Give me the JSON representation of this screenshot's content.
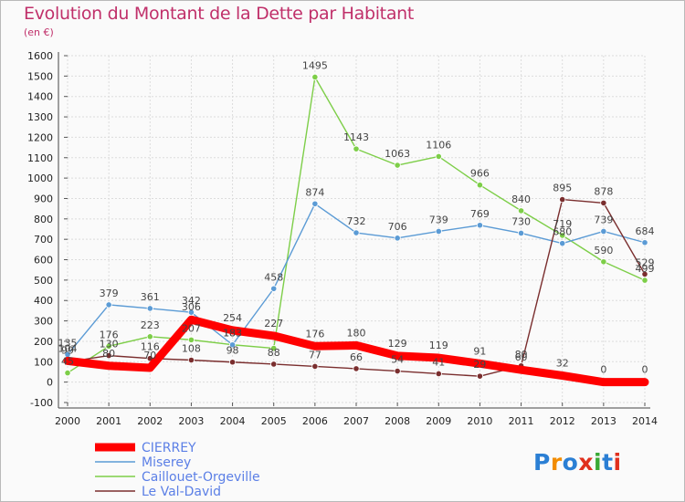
{
  "header": {
    "title": "Evolution du Montant de la Dette par Habitant",
    "unit": "(en €)"
  },
  "logo": {
    "text": "Proxiti",
    "colors": [
      "#2b7fd4",
      "#f28c00",
      "#2b7fd4",
      "#e0301e",
      "#3aa935",
      "#2b7fd4",
      "#e0301e"
    ]
  },
  "colors": {
    "title": "#c0306a",
    "grid": "#dcdcdc"
  },
  "chart_data": {
    "type": "line",
    "title": "Evolution du Montant de la Dette par Habitant",
    "subtitle": "(en €)",
    "xlabel": "",
    "ylabel": "",
    "x": [
      "2000",
      "2001",
      "2002",
      "2003",
      "2004",
      "2005",
      "2006",
      "2007",
      "2008",
      "2009",
      "2010",
      "2011",
      "2012",
      "2013",
      "2014"
    ],
    "ylim": [
      -100,
      1600
    ],
    "yticks": [
      -100,
      0,
      100,
      200,
      300,
      400,
      500,
      600,
      700,
      800,
      900,
      1000,
      1100,
      1200,
      1300,
      1400,
      1500,
      1600
    ],
    "grid": true,
    "legend_position": "bottom-left",
    "series": [
      {
        "name": "CIERREY",
        "color": "#ff0000",
        "values": [
          104,
          80,
          70,
          306,
          254,
          227,
          176,
          180,
          129,
          119,
          91,
          60,
          32,
          0,
          0
        ],
        "labels": [
          "104",
          "80",
          "70",
          "306",
          "254",
          "227",
          "176",
          "180",
          "129",
          "119",
          "91",
          "60",
          "32",
          "0",
          "0"
        ]
      },
      {
        "name": "Miserey",
        "color": "#5b9bd5",
        "values": [
          135,
          379,
          361,
          342,
          183,
          458,
          874,
          732,
          706,
          739,
          769,
          730,
          680,
          739,
          684
        ],
        "labels": [
          "135",
          "379",
          "361",
          "342",
          "183",
          "458",
          "874",
          "732",
          "706",
          "739",
          "769",
          "730",
          "680",
          "739",
          "684"
        ]
      },
      {
        "name": "Caillouet-Orgeville",
        "color": "#7dce48",
        "values": [
          45,
          176,
          223,
          207,
          183,
          166,
          1495,
          1143,
          1063,
          1106,
          966,
          840,
          719,
          590,
          499
        ],
        "labels": [
          "45",
          "176",
          "223",
          "207",
          "183",
          "",
          "1495",
          "1143",
          "1063",
          "1106",
          "966",
          "840",
          "719",
          "590",
          "499"
        ]
      },
      {
        "name": "Le Val-David",
        "color": "#7a2e2e",
        "values": [
          99,
          130,
          116,
          108,
          98,
          88,
          77,
          66,
          54,
          41,
          29,
          80,
          895,
          878,
          529
        ],
        "labels": [
          "99",
          "130",
          "116",
          "108",
          "98",
          "88",
          "77",
          "66",
          "54",
          "41",
          "29",
          "80",
          "895",
          "878",
          "529"
        ]
      }
    ]
  }
}
